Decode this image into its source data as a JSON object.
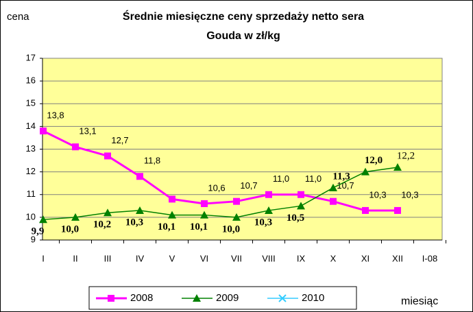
{
  "chart_data": {
    "type": "line",
    "title": [
      "Średnie miesięczne ceny sprzedaży netto sera",
      "Gouda w zł/kg"
    ],
    "y_label": "cena",
    "x_label": "miesiąc",
    "categories": [
      "I",
      "II",
      "III",
      "IV",
      "V",
      "VI",
      "VII",
      "VIII",
      "IX",
      "X",
      "XI",
      "XII",
      "I-08"
    ],
    "ylim": [
      9,
      17
    ],
    "yticks": [
      9,
      10,
      11,
      12,
      13,
      14,
      15,
      16,
      17
    ],
    "grid": true,
    "legend": "bottom",
    "series": [
      {
        "name": "2008",
        "color": "#ff00ff",
        "marker": "square",
        "values": [
          13.8,
          13.1,
          12.7,
          11.8,
          10.8,
          10.6,
          10.7,
          11.0,
          11.0,
          10.7,
          10.3,
          10.3,
          null
        ],
        "value_labels": [
          "13,8",
          "13,1",
          "12,7",
          "11,8",
          null,
          "10,6",
          "10,7",
          "11,0",
          "11,0",
          "10,7",
          "10,3",
          "10,3",
          null
        ]
      },
      {
        "name": "2009",
        "color": "#008000",
        "marker": "triangle",
        "values": [
          9.9,
          10.0,
          10.2,
          10.3,
          10.1,
          10.1,
          10.0,
          10.3,
          10.5,
          11.3,
          12.0,
          12.2,
          null
        ],
        "value_labels": [
          "9,9",
          "10,0",
          "10,2",
          "10,3",
          "10,1",
          "10,1",
          "10,0",
          "10,3",
          "10,5",
          "11,3",
          "12,0",
          "12,2",
          null
        ]
      },
      {
        "name": "2010",
        "color": "#33ccff",
        "marker": "x",
        "values": [
          null,
          null,
          null,
          null,
          null,
          null,
          null,
          null,
          null,
          null,
          null,
          null,
          null
        ]
      }
    ]
  }
}
